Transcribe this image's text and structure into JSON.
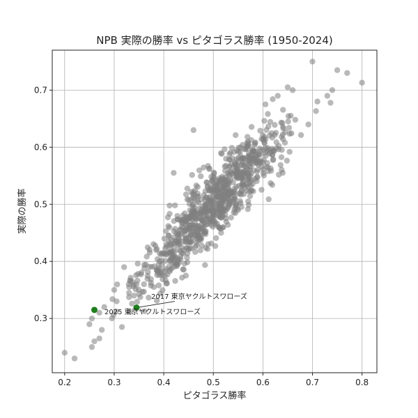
{
  "chart_data": {
    "type": "scatter",
    "title": "NPB 実際の勝率 vs ピタゴラス勝率 (1950-2024)",
    "xlabel": "ピタゴラス勝率",
    "ylabel": "実際の勝率",
    "xlim": [
      0.175,
      0.83
    ],
    "ylim": [
      0.205,
      0.77
    ],
    "x_ticks": [
      "0.2",
      "0.3",
      "0.4",
      "0.5",
      "0.6",
      "0.7",
      "0.8"
    ],
    "y_ticks": [
      "0.3",
      "0.4",
      "0.5",
      "0.6",
      "0.7"
    ],
    "grid": true,
    "base_color": "#808080",
    "highlight_color": "#1e7e1e",
    "background_points": {
      "note": "~900 team-seasons scattered around the diagonal (actual ≈ pythagorean)",
      "sample": [
        {
          "x": 0.2,
          "y": 0.24
        },
        {
          "x": 0.22,
          "y": 0.23
        },
        {
          "x": 0.255,
          "y": 0.25
        },
        {
          "x": 0.26,
          "y": 0.26
        },
        {
          "x": 0.25,
          "y": 0.29
        },
        {
          "x": 0.255,
          "y": 0.3
        },
        {
          "x": 0.275,
          "y": 0.28
        },
        {
          "x": 0.27,
          "y": 0.265
        },
        {
          "x": 0.27,
          "y": 0.31
        },
        {
          "x": 0.28,
          "y": 0.32
        },
        {
          "x": 0.3,
          "y": 0.35
        },
        {
          "x": 0.305,
          "y": 0.33
        },
        {
          "x": 0.32,
          "y": 0.39
        },
        {
          "x": 0.33,
          "y": 0.355
        },
        {
          "x": 0.34,
          "y": 0.34
        },
        {
          "x": 0.36,
          "y": 0.36
        },
        {
          "x": 0.38,
          "y": 0.355
        },
        {
          "x": 0.7,
          "y": 0.75
        },
        {
          "x": 0.75,
          "y": 0.735
        },
        {
          "x": 0.77,
          "y": 0.73
        },
        {
          "x": 0.8,
          "y": 0.713
        },
        {
          "x": 0.74,
          "y": 0.7
        },
        {
          "x": 0.73,
          "y": 0.69
        },
        {
          "x": 0.65,
          "y": 0.705
        },
        {
          "x": 0.66,
          "y": 0.7
        },
        {
          "x": 0.71,
          "y": 0.68
        },
        {
          "x": 0.63,
          "y": 0.69
        },
        {
          "x": 0.64,
          "y": 0.555
        },
        {
          "x": 0.46,
          "y": 0.63
        },
        {
          "x": 0.42,
          "y": 0.555
        },
        {
          "x": 0.52,
          "y": 0.46
        },
        {
          "x": 0.55,
          "y": 0.49
        }
      ]
    },
    "highlights": [
      {
        "label": "2017 東京ヤクルトスワローズ",
        "x": 0.345,
        "y": 0.319
      },
      {
        "label": "2025 東京ヤクルトスワローズ",
        "x": 0.26,
        "y": 0.315
      }
    ]
  }
}
